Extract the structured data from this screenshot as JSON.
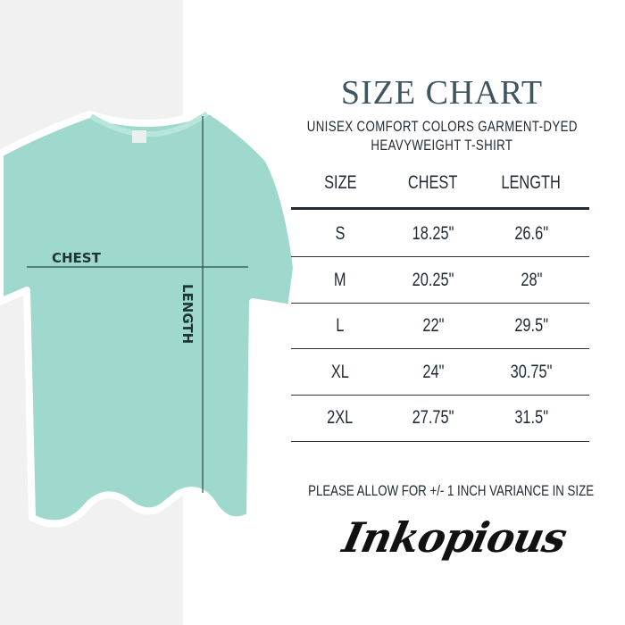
{
  "title": "SIZE CHART",
  "subtitle_line1": "UNISEX COMFORT COLORS GARMENT-DYED",
  "subtitle_line2": "HEAVYWEIGHT T-SHIRT",
  "table": {
    "headers": [
      "SIZE",
      "CHEST",
      "LENGTH"
    ],
    "rows": [
      [
        "S",
        "18.25\"",
        "26.6\""
      ],
      [
        "M",
        "20.25\"",
        "28\""
      ],
      [
        "L",
        "22\"",
        "29.5\""
      ],
      [
        "XL",
        "24\"",
        "30.75\""
      ],
      [
        "2XL",
        "27.75\"",
        "31.5\""
      ]
    ]
  },
  "illustration": {
    "chest_label": "CHEST",
    "length_label": "LENGTH",
    "shirt_color": "#9fd8cc",
    "panel_color": "#f1f1f1"
  },
  "note": "PLEASE ALLOW FOR +/- 1 INCH VARIANCE IN SIZE",
  "brand": "Inkopious"
}
